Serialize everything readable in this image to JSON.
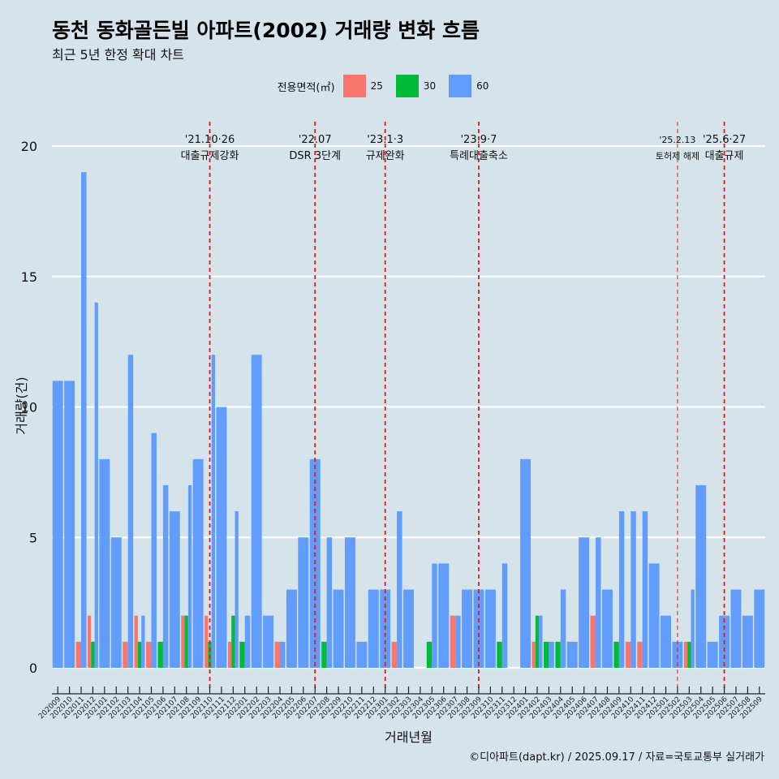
{
  "title": "동천 동화골든빌 아파트(2002) 거래량 변화 흐름",
  "subtitle": "최근 5년 한정 확대 차트",
  "caption": "©디아파트(dapt.kr) / 2025.09.17 / 자료=국토교통부 실거래가",
  "legend": {
    "title": "전용면적(㎡)",
    "items": [
      {
        "label": "25",
        "color": "#f8766d"
      },
      {
        "label": "30",
        "color": "#00ba38"
      },
      {
        "label": "60",
        "color": "#619cff"
      }
    ]
  },
  "chart_data": {
    "type": "bar",
    "title": "동천 동화골든빌 아파트(2002) 거래량 변화 흐름",
    "subtitle": "최근 5년 한정 확대 차트",
    "xlabel": "거래년월",
    "ylabel": "거래량(건)",
    "ylim": [
      0,
      21
    ],
    "yticks": [
      0,
      5,
      10,
      15,
      20
    ],
    "grid": true,
    "legend_position": "top",
    "categories": [
      "202009",
      "202010",
      "202011",
      "202012",
      "202101",
      "202102",
      "202103",
      "202104",
      "202105",
      "202106",
      "202107",
      "202108",
      "202109",
      "202110",
      "202111",
      "202112",
      "202201",
      "202202",
      "202203",
      "202204",
      "202205",
      "202206",
      "202207",
      "202208",
      "202209",
      "202210",
      "202211",
      "202212",
      "202301",
      "202302",
      "202303",
      "202304",
      "202305",
      "202306",
      "202307",
      "202308",
      "202309",
      "202310",
      "202311",
      "202312",
      "202401",
      "202402",
      "202403",
      "202404",
      "202405",
      "202406",
      "202407",
      "202408",
      "202409",
      "202410",
      "202411",
      "202412",
      "202501",
      "202502",
      "202503",
      "202504",
      "202505",
      "202506",
      "202507",
      "202508",
      "202509"
    ],
    "series": [
      {
        "name": "25",
        "color": "#f8766d",
        "values": [
          0,
          0,
          1,
          2,
          0,
          0,
          1,
          2,
          1,
          0,
          0,
          2,
          0,
          2,
          0,
          1,
          0,
          0,
          0,
          1,
          0,
          0,
          0,
          0,
          0,
          0,
          0,
          0,
          0,
          1,
          0,
          0,
          0,
          0,
          2,
          0,
          0,
          0,
          0,
          0,
          0,
          1,
          0,
          0,
          0,
          0,
          2,
          0,
          0,
          1,
          1,
          0,
          0,
          0,
          1,
          0,
          0,
          0,
          0,
          0,
          0
        ]
      },
      {
        "name": "30",
        "color": "#00ba38",
        "values": [
          0,
          0,
          0,
          1,
          0,
          0,
          0,
          1,
          0,
          1,
          0,
          2,
          0,
          1,
          0,
          2,
          1,
          0,
          0,
          0,
          0,
          0,
          0,
          1,
          0,
          0,
          0,
          0,
          0,
          0,
          0,
          0,
          1,
          0,
          0,
          0,
          0,
          0,
          1,
          0,
          0,
          2,
          1,
          1,
          0,
          0,
          0,
          0,
          1,
          0,
          0,
          0,
          0,
          0,
          1,
          0,
          0,
          0,
          0,
          0,
          0
        ]
      },
      {
        "name": "60",
        "color": "#619cff",
        "values": [
          11,
          11,
          19,
          14,
          8,
          5,
          12,
          2,
          9,
          7,
          6,
          7,
          8,
          12,
          10,
          6,
          2,
          12,
          2,
          1,
          3,
          5,
          8,
          5,
          3,
          5,
          1,
          3,
          3,
          6,
          3,
          0,
          4,
          4,
          2,
          3,
          3,
          3,
          4,
          0,
          8,
          2,
          1,
          3,
          1,
          5,
          5,
          3,
          6,
          6,
          6,
          4,
          2,
          1,
          3,
          7,
          1,
          2,
          3,
          2,
          3
        ]
      }
    ],
    "annotations": [
      {
        "text": "'21.10·26",
        "text2": "대출규제강화",
        "category": "202110",
        "style": "dashed"
      },
      {
        "text": "'22.07",
        "text2": "DSR 3단계",
        "category": "202207",
        "style": "dashed"
      },
      {
        "text": "'23.1·3",
        "text2": "규제완화",
        "category": "202301",
        "style": "dashed"
      },
      {
        "text": "'23.9·7",
        "text2": "특례대출축소",
        "category": "202309",
        "style": "dashed"
      },
      {
        "text": "'25.2.13",
        "text2": "토허제 해제",
        "category": "202502",
        "style": "dashed-thin"
      },
      {
        "text": "'25.6·27",
        "text2": "대출규제",
        "category": "202506",
        "style": "dashed"
      }
    ]
  }
}
